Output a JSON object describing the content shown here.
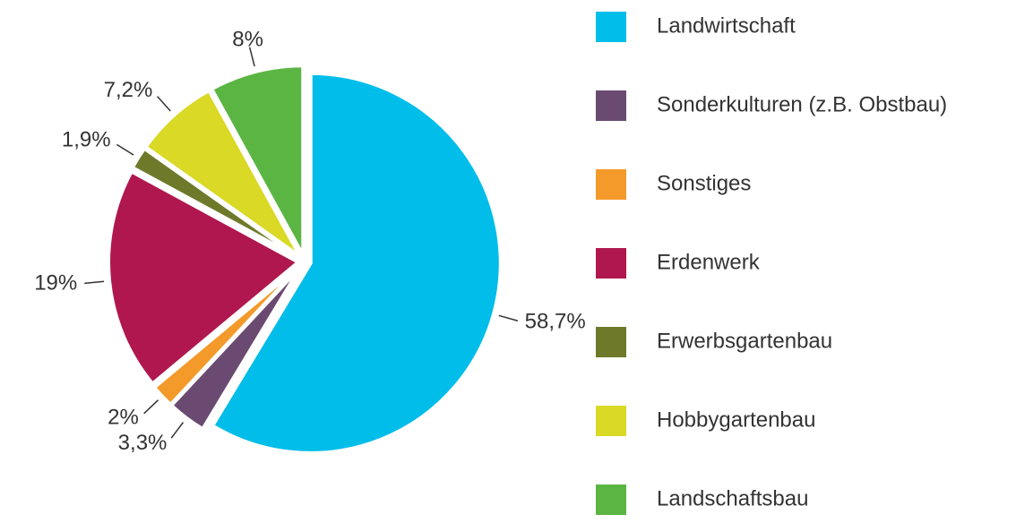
{
  "chart_data": {
    "type": "pie",
    "categories": [
      "Landwirtschaft",
      "Sonderkulturen (z.B. Obstbau)",
      "Sonstiges",
      "Erdenwerk",
      "Erwerbsgartenbau",
      "Hobbygartenbau",
      "Landschaftsbau"
    ],
    "values": [
      58.7,
      3.3,
      2,
      19,
      1.9,
      7.2,
      8
    ],
    "value_labels": [
      "58,7%",
      "3,3%",
      "2%",
      "19%",
      "1,9%",
      "7,2%",
      "8%"
    ],
    "colors": [
      "#00bde9",
      "#6b4a72",
      "#f39a2a",
      "#b0174f",
      "#6e7a2a",
      "#d9d926",
      "#5bb543"
    ],
    "legend": "right"
  }
}
